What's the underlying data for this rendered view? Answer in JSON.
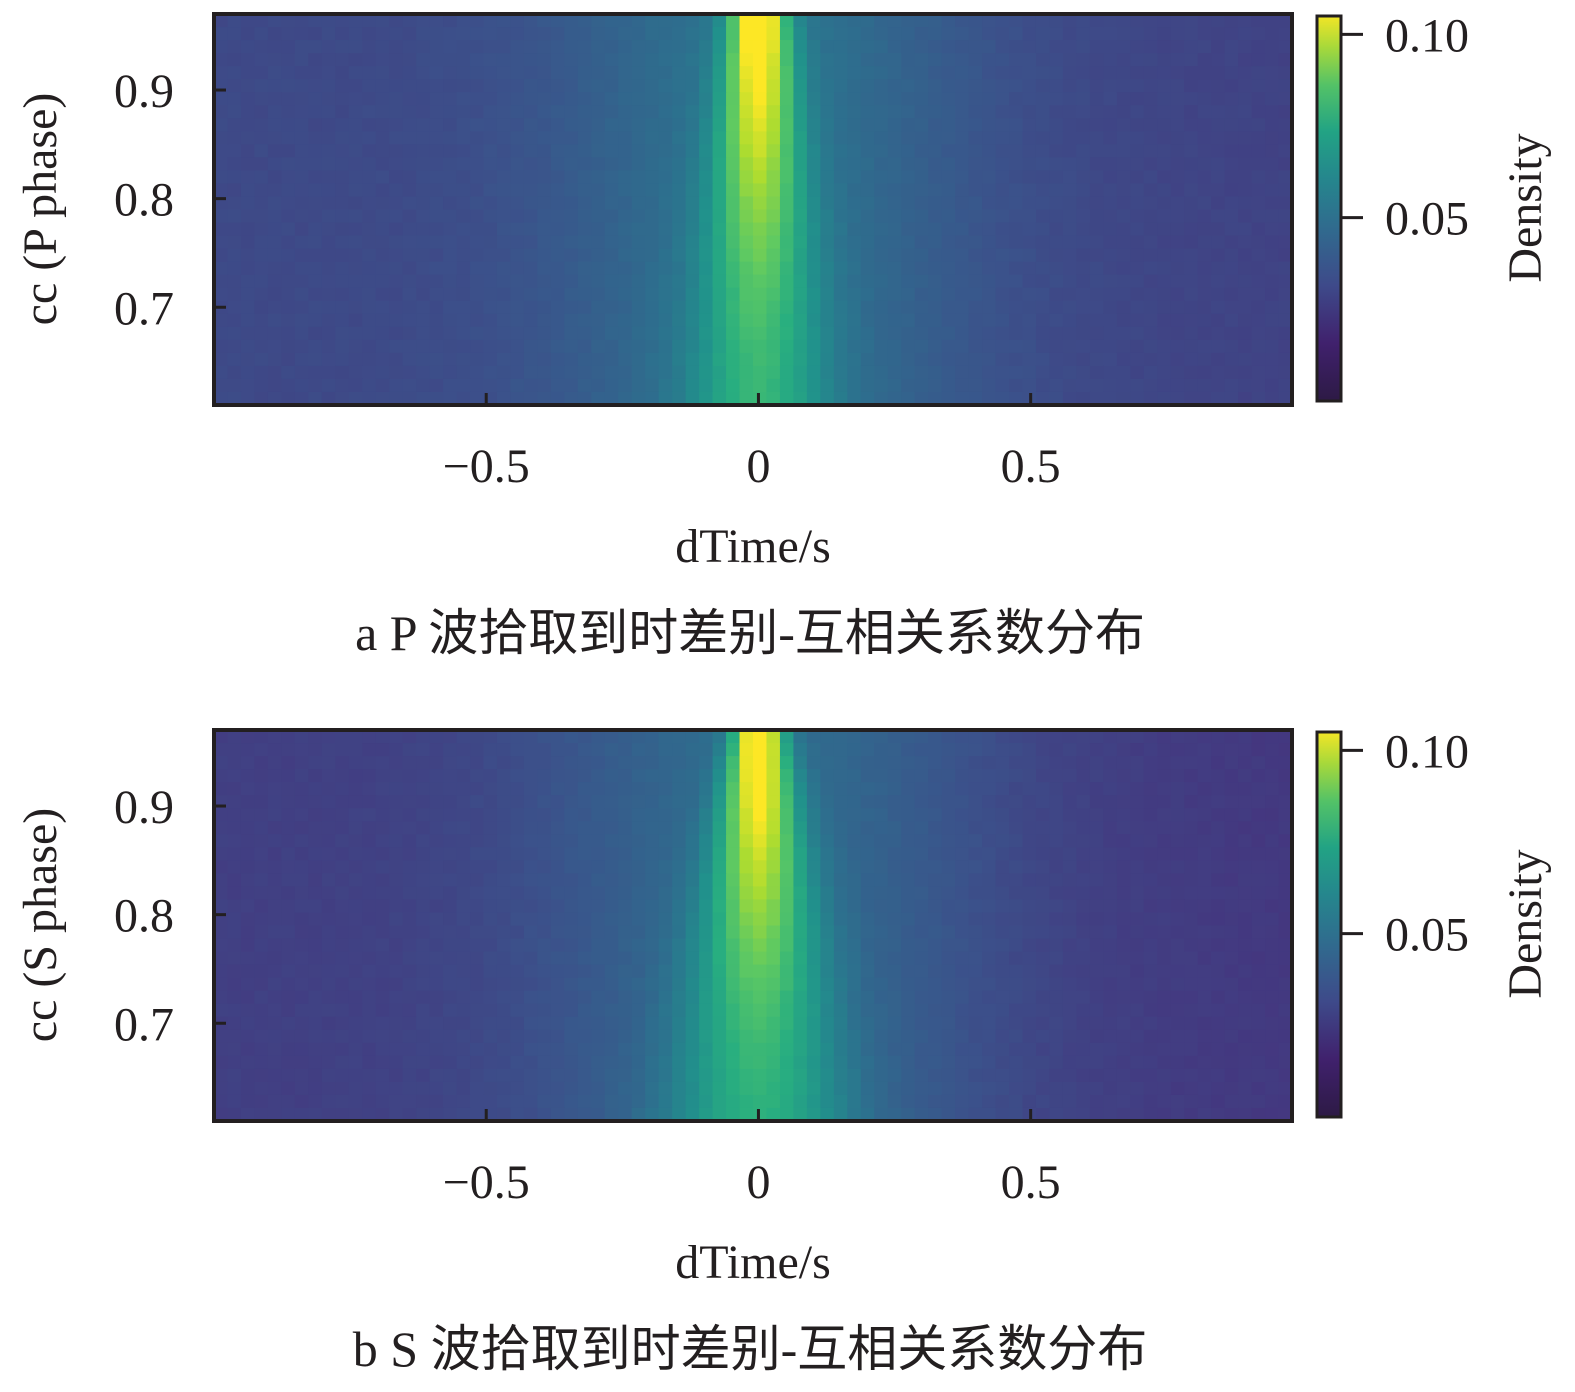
{
  "chart_data": [
    {
      "type": "heatmap",
      "caption": "a P 波拾取到时差别-互相关系数分布",
      "xlabel": "dTime/s",
      "ylabel": "cc (P phase)",
      "xlim": [
        -1.0,
        0.98
      ],
      "ylim": [
        0.61,
        0.97
      ],
      "x_ticks": [
        {
          "value": -0.5,
          "label": "−0.5"
        },
        {
          "value": 0,
          "label": "0"
        },
        {
          "value": 0.5,
          "label": "0.5"
        }
      ],
      "y_ticks": [
        {
          "value": 0.7,
          "label": "0.7"
        },
        {
          "value": 0.8,
          "label": "0.8"
        },
        {
          "value": 0.9,
          "label": "0.9"
        }
      ],
      "colorbar": {
        "label": "Density",
        "range": [
          0.0,
          0.105
        ],
        "ticks": [
          {
            "value": 0.05,
            "label": "0.05"
          },
          {
            "value": 0.1,
            "label": "0.10"
          }
        ]
      },
      "colormap": [
        "#440154",
        "#472d7b",
        "#3b528b",
        "#2c728e",
        "#21918c",
        "#28ae80",
        "#5ec962",
        "#addc30",
        "#fde725"
      ],
      "density_model": {
        "peak": 0.105,
        "peak_x": 0.0,
        "base": 0.012,
        "core_width_top": 0.035,
        "core_width_bottom": 0.085,
        "halo_amp": 0.02,
        "halo_width": 0.25
      }
    },
    {
      "type": "heatmap",
      "caption": "b S 波拾取到时差别-互相关系数分布",
      "xlabel": "dTime/s",
      "ylabel": "cc (S phase)",
      "xlim": [
        -1.0,
        0.98
      ],
      "ylim": [
        0.61,
        0.97
      ],
      "x_ticks": [
        {
          "value": -0.5,
          "label": "−0.5"
        },
        {
          "value": 0,
          "label": "0"
        },
        {
          "value": 0.5,
          "label": "0.5"
        }
      ],
      "y_ticks": [
        {
          "value": 0.7,
          "label": "0.7"
        },
        {
          "value": 0.8,
          "label": "0.8"
        },
        {
          "value": 0.9,
          "label": "0.9"
        }
      ],
      "colorbar": {
        "label": "Density",
        "range": [
          0.0,
          0.105
        ],
        "ticks": [
          {
            "value": 0.05,
            "label": "0.05"
          },
          {
            "value": 0.1,
            "label": "0.10"
          }
        ]
      },
      "colormap": [
        "#440154",
        "#472d7b",
        "#3b528b",
        "#2c728e",
        "#21918c",
        "#28ae80",
        "#5ec962",
        "#addc30",
        "#fde725"
      ],
      "density_model": {
        "peak": 0.105,
        "peak_x": 0.0,
        "base": 0.008,
        "core_width_top": 0.03,
        "core_width_bottom": 0.11,
        "halo_amp": 0.02,
        "halo_width": 0.28
      }
    }
  ]
}
